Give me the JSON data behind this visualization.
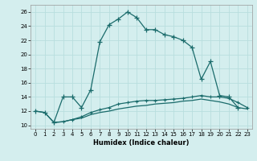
{
  "xlabel": "Humidex (Indice chaleur)",
  "bg_color": "#d4eeee",
  "line_color": "#1a6b6b",
  "grid_color": "#b8dede",
  "xlim": [
    -0.5,
    23.5
  ],
  "ylim": [
    9.5,
    27
  ],
  "xticks": [
    0,
    1,
    2,
    3,
    4,
    5,
    6,
    7,
    8,
    9,
    10,
    11,
    12,
    13,
    14,
    15,
    16,
    17,
    18,
    19,
    20,
    21,
    22,
    23
  ],
  "yticks": [
    10,
    12,
    14,
    16,
    18,
    20,
    22,
    24,
    26
  ],
  "line1_x": [
    0,
    1,
    2,
    3,
    4,
    5,
    6,
    7,
    8,
    9,
    10,
    11,
    12,
    13,
    14,
    15,
    16,
    17,
    18,
    19,
    20,
    21,
    22
  ],
  "line1_y": [
    12.0,
    11.8,
    10.4,
    14.0,
    14.0,
    12.5,
    15.0,
    21.8,
    24.2,
    25.0,
    26.0,
    25.2,
    23.5,
    23.5,
    22.8,
    22.5,
    22.0,
    21.0,
    16.5,
    19.0,
    14.2,
    14.0,
    12.5
  ],
  "line2_x": [
    2,
    3,
    4,
    5,
    6,
    7,
    8,
    9,
    10,
    11,
    12,
    13,
    14,
    15,
    16,
    17,
    18,
    19,
    20,
    21,
    22,
    23
  ],
  "line2_y": [
    10.4,
    10.5,
    10.8,
    11.2,
    11.8,
    12.2,
    12.5,
    13.0,
    13.2,
    13.4,
    13.5,
    13.5,
    13.6,
    13.7,
    13.8,
    14.0,
    14.2,
    14.0,
    14.0,
    13.8,
    13.2,
    12.5
  ],
  "line3_x": [
    0,
    1,
    2,
    3,
    4,
    5,
    6,
    7,
    8,
    9,
    10,
    11,
    12,
    13,
    14,
    15,
    16,
    17,
    18,
    19,
    20,
    21,
    22,
    23
  ],
  "line3_y": [
    12.0,
    11.8,
    10.4,
    10.5,
    10.8,
    11.0,
    11.5,
    11.8,
    12.0,
    12.3,
    12.5,
    12.7,
    12.8,
    13.0,
    13.1,
    13.2,
    13.4,
    13.5,
    13.7,
    13.5,
    13.3,
    13.0,
    12.5,
    12.3
  ]
}
